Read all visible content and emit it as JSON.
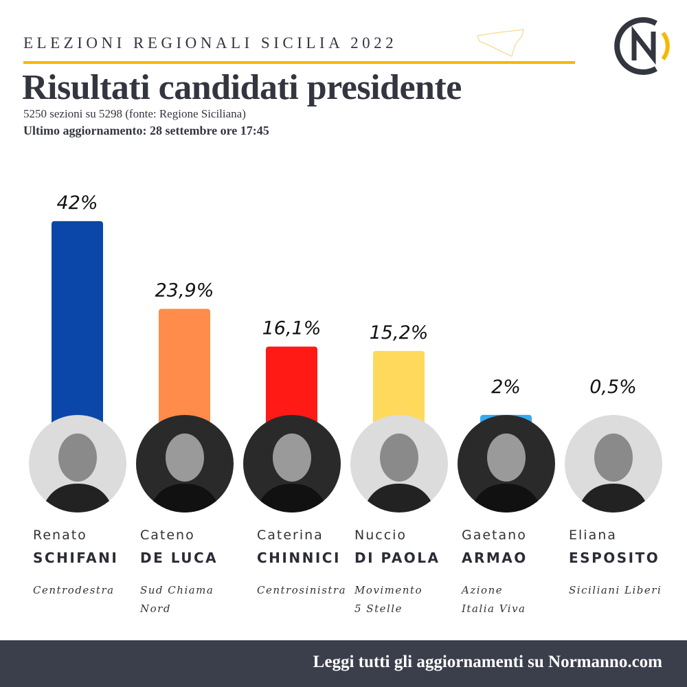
{
  "header": {
    "kicker": "ELEZIONI REGIONALI SICILIA 2022",
    "title": "Risultati candidati presidente",
    "subtitle": "5250 sezioni su 5298 (fonte: Regione Siciliana)",
    "updated": "Ultimo aggiornamento: 28 settembre ore 17:45",
    "logo_icon": "normanno-cn-logo",
    "accent": "#f5b800"
  },
  "chart_data": {
    "type": "bar",
    "title": "Risultati candidati presidente",
    "categories": [
      "Renato SCHIFANI",
      "Cateno DE LUCA",
      "Caterina CHINNICI",
      "Nuccio DI PAOLA",
      "Gaetano ARMAO",
      "Eliana ESPOSITO"
    ],
    "values": [
      42,
      23.9,
      16.1,
      15.2,
      2,
      0.5
    ],
    "labels": [
      "42%",
      "23,9%",
      "16,1%",
      "15,2%",
      "2%",
      "0,5%"
    ],
    "colors": [
      "#0b47a8",
      "#ff8c4a",
      "#ff1a16",
      "#ffd95c",
      "#35a9f2",
      "#2f7be6"
    ],
    "ylim": [
      0,
      45
    ],
    "grid": false,
    "legend": "none"
  },
  "candidates": [
    {
      "first": "Renato",
      "last": "SCHIFANI",
      "party": "Centrodestra"
    },
    {
      "first": "Cateno",
      "last": "DE LUCA",
      "party": "Sud Chiama\nNord"
    },
    {
      "first": "Caterina",
      "last": "CHINNICI",
      "party": "Centrosinistra"
    },
    {
      "first": "Nuccio",
      "last": "DI PAOLA",
      "party": "Movimento\n5 Stelle"
    },
    {
      "first": "Gaetano",
      "last": "ARMAO",
      "party": "Azione\nItalia Viva"
    },
    {
      "first": "Eliana",
      "last": "ESPOSITO",
      "party": "Siciliani Liberi"
    }
  ],
  "footer": {
    "text": "Leggi tutti gli aggiornamenti su Normanno.com"
  }
}
